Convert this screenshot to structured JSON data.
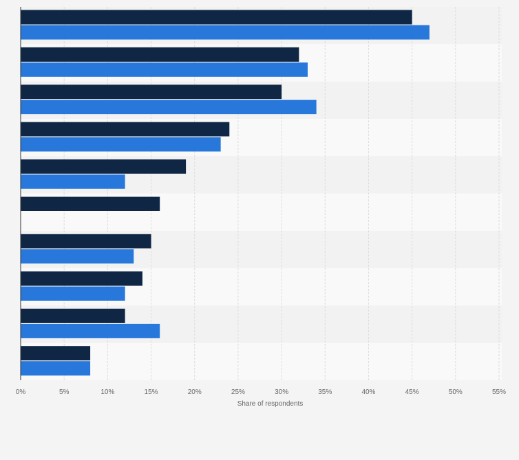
{
  "chart_data": {
    "type": "bar",
    "orientation": "horizontal",
    "categories": [
      "",
      "",
      "",
      "",
      "",
      "",
      "",
      "",
      "",
      ""
    ],
    "series": [
      {
        "color": "#0f2744",
        "values": [
          45,
          32,
          30,
          24,
          19,
          16,
          15,
          14,
          12,
          8
        ]
      },
      {
        "color": "#2878dc",
        "values": [
          47,
          33,
          34,
          23,
          12,
          null,
          13,
          12,
          16,
          8
        ]
      }
    ],
    "xlabel": "Share of respondents",
    "xlim": [
      0,
      55
    ],
    "xticks": [
      0,
      5,
      10,
      15,
      20,
      25,
      30,
      35,
      40,
      45,
      50,
      55
    ],
    "tick_format": "{v}%",
    "grid": true,
    "legend": "none"
  }
}
